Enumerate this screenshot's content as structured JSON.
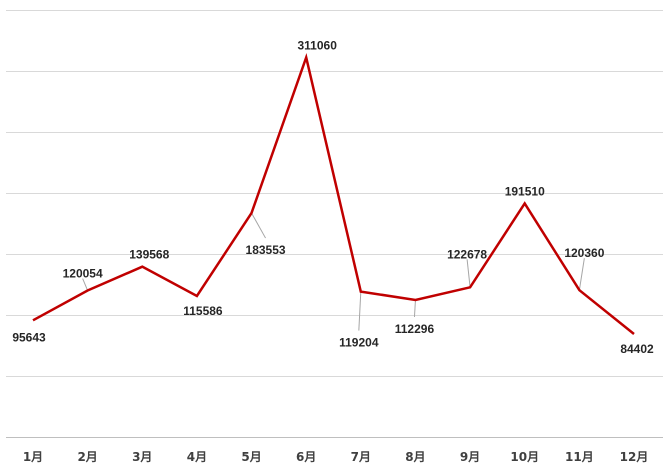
{
  "chart_data": {
    "type": "line",
    "title": "",
    "xlabel": "",
    "ylabel": "",
    "categories": [
      "1月",
      "2月",
      "3月",
      "4月",
      "5月",
      "6月",
      "7月",
      "8月",
      "9月",
      "10月",
      "11月",
      "12月"
    ],
    "series": [
      {
        "values": [
          95643,
          120054,
          139568,
          115586,
          183553,
          311060,
          119204,
          112296,
          122678,
          191510,
          120360,
          84402
        ],
        "color": "#c00000"
      }
    ],
    "ylim": [
      0,
      350000
    ],
    "y_major": 50000,
    "grid": true,
    "legend": "none",
    "data_labels": true,
    "y_tick_labels_shown": false
  }
}
